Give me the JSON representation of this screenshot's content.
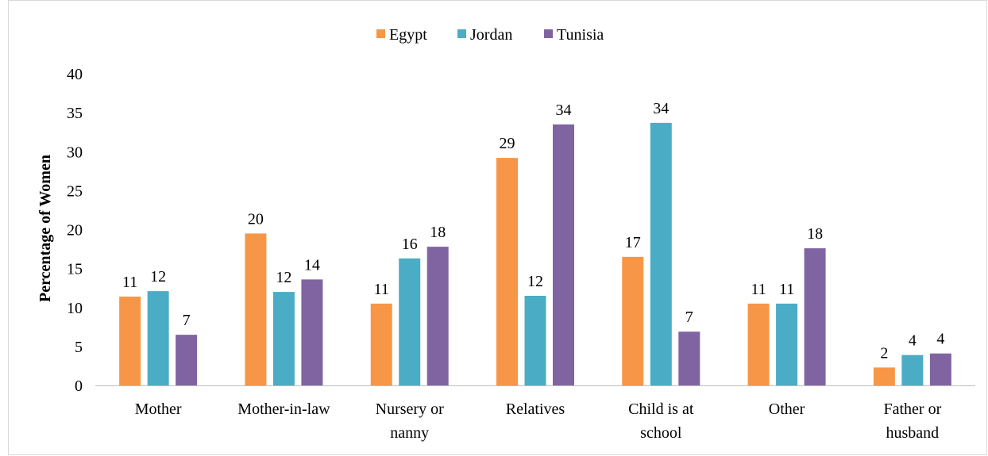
{
  "chart_data": {
    "type": "bar",
    "title": "",
    "xlabel": "",
    "ylabel": "Percentage of Women",
    "ylim": [
      0,
      40
    ],
    "yticks": [
      0,
      5,
      10,
      15,
      20,
      25,
      30,
      35,
      40
    ],
    "grid": false,
    "legend_position": "top-center",
    "categories": [
      "Mother",
      "Mother-in-law",
      "Nursery or nanny",
      "Relatives",
      "Child is at school",
      "Other",
      "Father or husband"
    ],
    "category_lines": [
      [
        "Mother"
      ],
      [
        "Mother-in-law"
      ],
      [
        "Nursery or",
        "nanny"
      ],
      [
        "Relatives"
      ],
      [
        "Child is at",
        "school"
      ],
      [
        "Other"
      ],
      [
        "Father or",
        "husband"
      ]
    ],
    "series": [
      {
        "name": "Egypt",
        "color": "#f79646",
        "values": [
          11.4,
          19.5,
          10.5,
          29.2,
          16.5,
          10.5,
          2.3
        ],
        "labels": [
          "11",
          "20",
          "11",
          "29",
          "17",
          "11",
          "2"
        ]
      },
      {
        "name": "Jordan",
        "color": "#4bacc6",
        "values": [
          12.1,
          12.0,
          16.3,
          11.5,
          33.7,
          10.5,
          3.9
        ],
        "labels": [
          "12",
          "12",
          "16",
          "12",
          "34",
          "11",
          "4"
        ]
      },
      {
        "name": "Tunisia",
        "color": "#8064a2",
        "values": [
          6.5,
          13.6,
          17.8,
          33.5,
          6.9,
          17.6,
          4.1
        ],
        "labels": [
          "7",
          "14",
          "18",
          "34",
          "7",
          "18",
          "4"
        ]
      }
    ]
  }
}
